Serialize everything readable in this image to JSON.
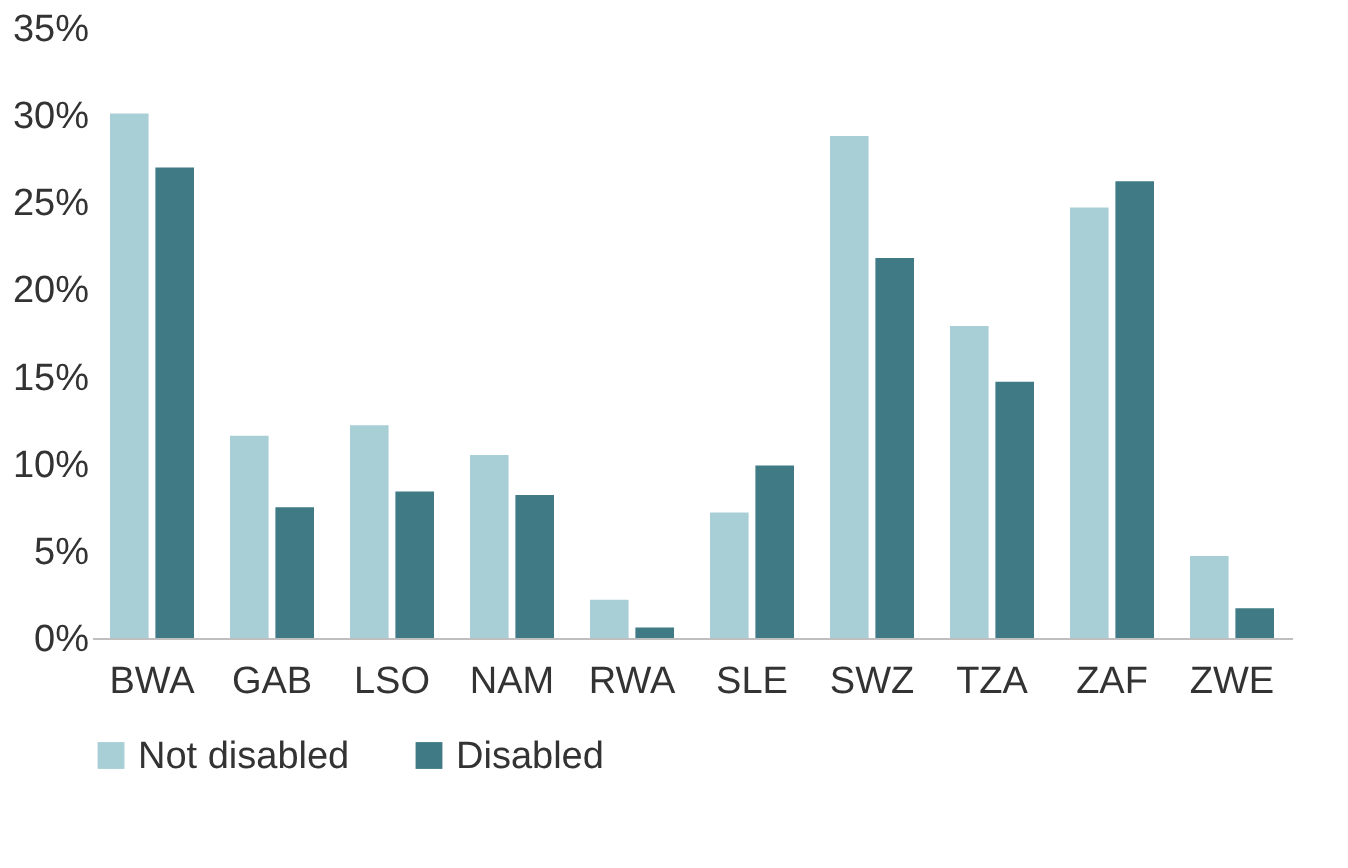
{
  "chart_data": {
    "type": "bar",
    "categories": [
      "BWA",
      "GAB",
      "LSO",
      "NAM",
      "RWA",
      "SLE",
      "SWZ",
      "TZA",
      "ZAF",
      "ZWE"
    ],
    "series": [
      {
        "name": "Not disabled",
        "color": "#a9cfd6",
        "values": [
          30.1,
          11.6,
          12.2,
          10.5,
          2.2,
          7.2,
          28.8,
          17.9,
          24.7,
          4.7
        ]
      },
      {
        "name": "Disabled",
        "color": "#3f7a85",
        "values": [
          27.0,
          7.5,
          8.4,
          8.2,
          0.6,
          9.9,
          21.8,
          14.7,
          26.2,
          1.7
        ]
      }
    ],
    "ylim": [
      0,
      35
    ],
    "yticks": [
      {
        "value": 0,
        "label": "0%"
      },
      {
        "value": 5,
        "label": "5%"
      },
      {
        "value": 10,
        "label": "10%"
      },
      {
        "value": 15,
        "label": "15%"
      },
      {
        "value": 20,
        "label": "20%"
      },
      {
        "value": 25,
        "label": "25%"
      },
      {
        "value": 30,
        "label": "30%"
      },
      {
        "value": 35,
        "label": "35%"
      }
    ],
    "grid": false,
    "legend": "bottom"
  }
}
